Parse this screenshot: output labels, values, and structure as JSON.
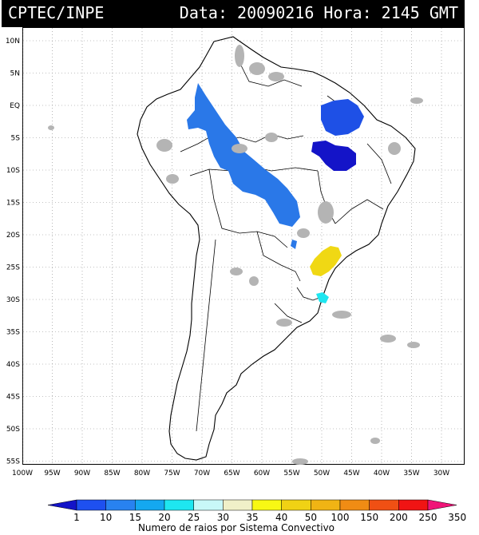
{
  "header": {
    "source": "CPTEC/INPE",
    "datetime": "Data: 20090216 Hora: 2145 GMT"
  },
  "axes": {
    "lat_labels": [
      "10N",
      "5N",
      "EQ",
      "5S",
      "10S",
      "15S",
      "20S",
      "25S",
      "30S",
      "35S",
      "40S",
      "45S",
      "50S",
      "55S"
    ],
    "lon_labels": [
      "100W",
      "95W",
      "90W",
      "85W",
      "80W",
      "75W",
      "70W",
      "65W",
      "60W",
      "55W",
      "50W",
      "45W",
      "40W",
      "35W",
      "30W"
    ]
  },
  "colorbar": {
    "title": "Numero de raios por Sistema Convectivo",
    "labels": [
      "1",
      "10",
      "15",
      "20",
      "25",
      "30",
      "35",
      "40",
      "50",
      "100",
      "150",
      "200",
      "250",
      "350"
    ],
    "colors": [
      "#1414c8",
      "#1e50f0",
      "#2882f0",
      "#14a8f0",
      "#1ee6f0",
      "#c8f8f8",
      "#f0f0c8",
      "#f8f814",
      "#f0d214",
      "#f0b414",
      "#f08c14",
      "#f05014",
      "#f01414",
      "#f01478"
    ]
  }
}
